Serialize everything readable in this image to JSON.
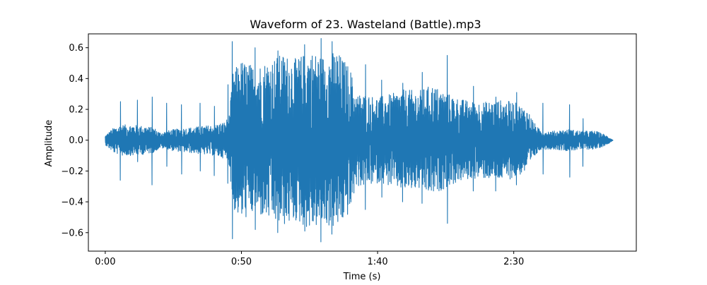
{
  "chart_data": {
    "type": "line",
    "title": "Waveform of 23. Wasteland (Battle).mp3",
    "xlabel": "Time (s)",
    "ylabel": "Amplitude",
    "xlim": [
      -6.2,
      195.0
    ],
    "ylim": [
      -0.72,
      0.69
    ],
    "x_ticks": [
      {
        "value": 0,
        "label": "0:00"
      },
      {
        "value": 50,
        "label": "0:50"
      },
      {
        "value": 100,
        "label": "1:40"
      },
      {
        "value": 150,
        "label": "2:30"
      }
    ],
    "y_ticks": [
      {
        "value": 0.6,
        "label": "0.6"
      },
      {
        "value": 0.4,
        "label": "0.4"
      },
      {
        "value": 0.2,
        "label": "0.2"
      },
      {
        "value": 0.0,
        "label": "0.0"
      },
      {
        "value": -0.2,
        "label": "−0.2"
      },
      {
        "value": -0.4,
        "label": "−0.4"
      },
      {
        "value": -0.6,
        "label": "−0.6"
      }
    ],
    "grid": false,
    "color": "#1f77b4",
    "duration_s": 186.5,
    "series": [
      {
        "envelope": {
          "t": [
            0,
            3,
            6,
            10,
            15,
            18,
            20,
            25,
            30,
            35,
            40,
            44,
            45.5,
            47,
            50,
            55,
            60,
            65,
            70,
            75,
            80,
            85,
            90,
            92,
            95,
            100,
            105,
            110,
            115,
            120,
            125,
            130,
            135,
            140,
            145,
            150,
            155,
            158,
            160,
            165,
            170,
            175,
            180,
            183,
            185,
            186.5
          ],
          "amp": [
            0.03,
            0.08,
            0.1,
            0.1,
            0.09,
            0.08,
            0.05,
            0.07,
            0.08,
            0.09,
            0.1,
            0.12,
            0.16,
            0.45,
            0.52,
            0.48,
            0.52,
            0.56,
            0.53,
            0.58,
            0.55,
            0.58,
            0.47,
            0.3,
            0.3,
            0.28,
            0.3,
            0.33,
            0.32,
            0.36,
            0.31,
            0.27,
            0.25,
            0.25,
            0.26,
            0.25,
            0.2,
            0.1,
            0.06,
            0.06,
            0.07,
            0.06,
            0.06,
            0.04,
            0.02,
            0.0
          ]
        },
        "peaks": [
          {
            "t": 5.5,
            "value": 0.25
          },
          {
            "t": 5.5,
            "value": -0.26
          },
          {
            "t": 11.8,
            "value": 0.26
          },
          {
            "t": 11.8,
            "value": -0.14
          },
          {
            "t": 17.2,
            "value": 0.28
          },
          {
            "t": 17.2,
            "value": -0.29
          },
          {
            "t": 22.5,
            "value": 0.24
          },
          {
            "t": 22.5,
            "value": -0.17
          },
          {
            "t": 28.0,
            "value": 0.23
          },
          {
            "t": 28.0,
            "value": -0.22
          },
          {
            "t": 34.8,
            "value": 0.24
          },
          {
            "t": 34.8,
            "value": -0.2
          },
          {
            "t": 40.0,
            "value": 0.22
          },
          {
            "t": 40.0,
            "value": -0.23
          },
          {
            "t": 45.0,
            "value": 0.36
          },
          {
            "t": 45.0,
            "value": -0.28
          },
          {
            "t": 46.6,
            "value": 0.64
          },
          {
            "t": 46.6,
            "value": -0.64
          },
          {
            "t": 55.0,
            "value": 0.6
          },
          {
            "t": 55.0,
            "value": -0.58
          },
          {
            "t": 63.3,
            "value": 0.58
          },
          {
            "t": 63.3,
            "value": -0.6
          },
          {
            "t": 73.2,
            "value": 0.62
          },
          {
            "t": 73.2,
            "value": -0.59
          },
          {
            "t": 79.2,
            "value": 0.66
          },
          {
            "t": 79.2,
            "value": -0.66
          },
          {
            "t": 83.2,
            "value": 0.64
          },
          {
            "t": 83.2,
            "value": -0.61
          },
          {
            "t": 95.5,
            "value": 0.49
          },
          {
            "t": 95.5,
            "value": -0.45
          },
          {
            "t": 101.5,
            "value": 0.39
          },
          {
            "t": 101.5,
            "value": -0.37
          },
          {
            "t": 109.2,
            "value": 0.37
          },
          {
            "t": 109.2,
            "value": -0.4
          },
          {
            "t": 116.3,
            "value": 0.44
          },
          {
            "t": 116.3,
            "value": -0.41
          },
          {
            "t": 125.6,
            "value": 0.55
          },
          {
            "t": 125.6,
            "value": -0.54
          },
          {
            "t": 135.1,
            "value": 0.35
          },
          {
            "t": 135.1,
            "value": -0.33
          },
          {
            "t": 143.4,
            "value": 0.28
          },
          {
            "t": 143.4,
            "value": -0.33
          },
          {
            "t": 151.0,
            "value": 0.31
          },
          {
            "t": 151.0,
            "value": -0.29
          },
          {
            "t": 160.7,
            "value": 0.24
          },
          {
            "t": 160.7,
            "value": -0.22
          },
          {
            "t": 170.5,
            "value": 0.23
          },
          {
            "t": 170.5,
            "value": -0.24
          },
          {
            "t": 175.4,
            "value": 0.14
          },
          {
            "t": 175.4,
            "value": -0.17
          }
        ]
      }
    ]
  }
}
